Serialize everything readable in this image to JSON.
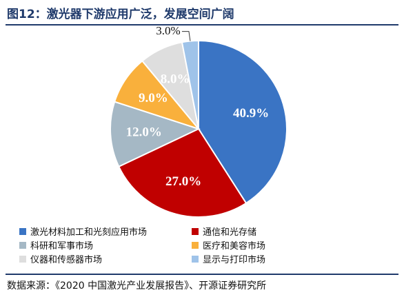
{
  "figure": {
    "title": "图12：激光器下游应用广泛，发展空间广阔",
    "source": "数据来源：《2020 中国激光产业发展报告》、开源证券研究所"
  },
  "chart_data": {
    "type": "pie",
    "slices": [
      {
        "label": "激光材料加工和光刻应用市场",
        "value": 40.9,
        "value_label": "40.9%",
        "color": "#3a74c4"
      },
      {
        "label": "通信和光存储",
        "value": 27.0,
        "value_label": "27.0%",
        "color": "#c00000"
      },
      {
        "label": "科研和军事市场",
        "value": 12.0,
        "value_label": "12.0%",
        "color": "#a5b8c5"
      },
      {
        "label": "医疗和美容市场",
        "value": 9.0,
        "value_label": "9.0%",
        "color": "#f9b03c"
      },
      {
        "label": "仪器和传感器市场",
        "value": 8.0,
        "value_label": "8.0%",
        "color": "#dedede"
      },
      {
        "label": "显示与打印市场",
        "value": 3.0,
        "value_label": "3.0%",
        "color": "#9fc3e9"
      }
    ],
    "start": "12 o'clock",
    "direction": "clockwise",
    "legend_position": "bottom"
  }
}
